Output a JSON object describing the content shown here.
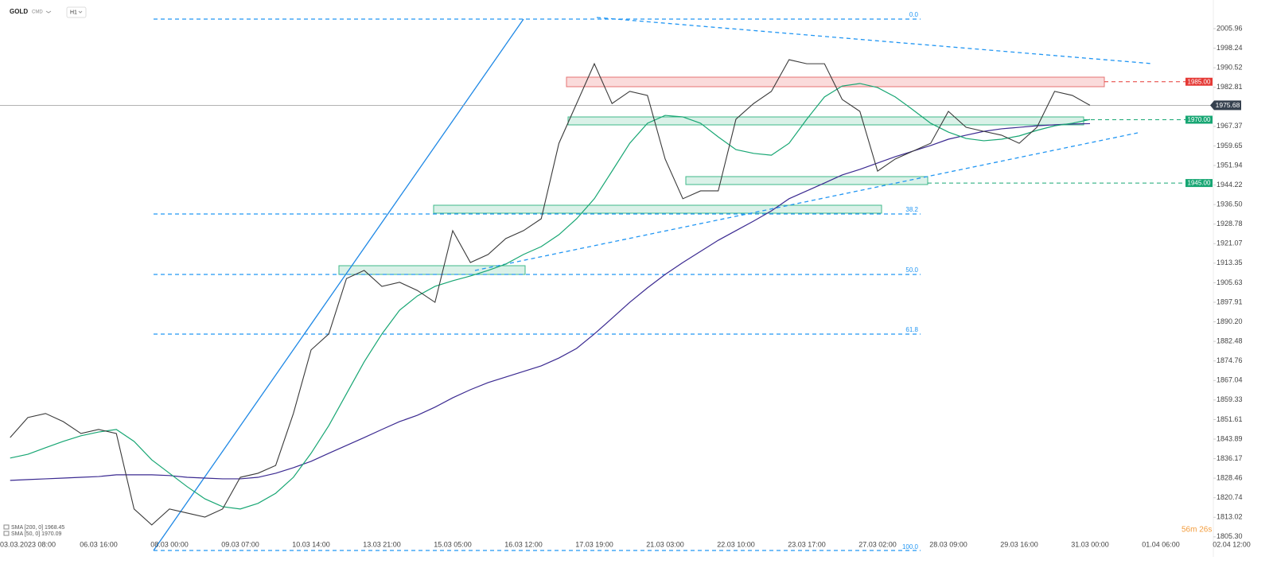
{
  "chart_data": {
    "type": "line",
    "symbol": "GOLD",
    "symbol_class": "CMD",
    "timeframe": "H1",
    "categories": [
      null,
      "03.03.2023 08:00",
      null,
      null,
      null,
      "06.03 16:00",
      null,
      null,
      null,
      "08.03 00:00",
      null,
      null,
      null,
      "09.03 07:00",
      null,
      null,
      null,
      "10.03 14:00",
      null,
      null,
      null,
      "13.03 21:00",
      null,
      null,
      null,
      "15.03 05:00",
      null,
      null,
      null,
      "16.03 12:00",
      null,
      null,
      null,
      "17.03 19:00",
      null,
      null,
      null,
      "21.03 03:00",
      null,
      null,
      null,
      "22.03 10:00",
      null,
      null,
      null,
      "23.03 17:00",
      null,
      null,
      null,
      "27.03 02:00",
      null,
      null,
      null,
      "28.03 09:00",
      null,
      null,
      null,
      "29.03 16:00",
      null,
      null,
      null,
      "31.03 00:00",
      null,
      null,
      null,
      "01.04 06:00",
      null,
      null,
      null,
      "02.04 12:00"
    ],
    "price": {
      "color": "#3a3a3a",
      "values": [
        1844.5,
        1852.4,
        1854.0,
        1850.8,
        1846.1,
        1847.7,
        1846.1,
        1816.3,
        1810.0,
        1816.3,
        1814.7,
        1813.1,
        1816.3,
        1828.8,
        1830.4,
        1833.5,
        1854.0,
        1879.1,
        1885.4,
        1907.3,
        1910.5,
        1904.2,
        1905.8,
        1902.6,
        1897.9,
        1926.2,
        1913.6,
        1916.8,
        1923.1,
        1926.2,
        1930.9,
        1960.7,
        1976.4,
        1992.1,
        1976.4,
        1981.2,
        1979.6,
        1954.5,
        1938.8,
        1941.9,
        1941.9,
        1970.2,
        1976.4,
        1981.2,
        1993.7,
        1992.1,
        1992.1,
        1978.0,
        1973.3,
        1949.7,
        1954.5,
        1957.6,
        1960.7,
        1973.3,
        1967.0,
        1965.4,
        1963.9,
        1960.7,
        1967.0,
        1981.2,
        1979.6,
        1975.68,
        null,
        null,
        null,
        null,
        null,
        null,
        null,
        null
      ]
    },
    "series": [
      {
        "name": "SMA [200, 0] 1968.45",
        "color": "#3b2a91",
        "values": [
          1827.6,
          1827.9,
          1828.2,
          1828.5,
          1828.8,
          1829.1,
          1829.8,
          1829.8,
          1829.8,
          1829.5,
          1828.8,
          1828.5,
          1828.2,
          1828.2,
          1828.8,
          1830.4,
          1832.6,
          1835.1,
          1838.3,
          1841.4,
          1844.5,
          1847.7,
          1850.8,
          1853.3,
          1856.5,
          1860.2,
          1863.4,
          1866.2,
          1868.4,
          1870.6,
          1872.8,
          1875.9,
          1879.7,
          1885.4,
          1891.6,
          1897.9,
          1903.6,
          1908.9,
          1913.6,
          1918.0,
          1922.4,
          1926.2,
          1930.0,
          1934.0,
          1938.8,
          1941.9,
          1945.0,
          1948.2,
          1950.4,
          1952.9,
          1955.4,
          1957.6,
          1959.8,
          1962.3,
          1963.9,
          1965.4,
          1966.4,
          1967.0,
          1967.6,
          1968.0,
          1968.3,
          1968.45,
          null,
          null,
          null,
          null,
          null,
          null,
          null,
          null
        ]
      },
      {
        "name": "SMA [50, 0] 1970.09",
        "color": "#17a673",
        "values": [
          1836.4,
          1837.9,
          1840.5,
          1843.0,
          1845.2,
          1846.7,
          1847.7,
          1843.0,
          1835.7,
          1830.4,
          1825.1,
          1820.3,
          1817.2,
          1816.3,
          1818.5,
          1822.5,
          1828.8,
          1838.3,
          1849.2,
          1861.8,
          1874.4,
          1885.4,
          1894.8,
          1900.4,
          1904.2,
          1906.4,
          1908.3,
          1910.5,
          1913.0,
          1916.8,
          1919.9,
          1924.6,
          1930.9,
          1938.8,
          1949.7,
          1960.7,
          1968.6,
          1971.7,
          1971.1,
          1968.6,
          1963.2,
          1958.2,
          1956.7,
          1956.0,
          1960.7,
          1970.2,
          1979.0,
          1983.3,
          1984.3,
          1982.7,
          1979.0,
          1973.9,
          1968.6,
          1965.1,
          1962.6,
          1961.7,
          1962.3,
          1963.6,
          1965.8,
          1967.6,
          1968.6,
          1970.09,
          null,
          null,
          null,
          null,
          null,
          null,
          null,
          null
        ]
      }
    ],
    "ylim": [
      1797.4,
      2017.27
    ],
    "yticks": [
      2005.96,
      1998.24,
      1990.52,
      1982.81,
      1967.37,
      1959.65,
      1951.94,
      1944.22,
      {
        "value": 1936.5,
        "label": "1936.50"
      },
      1928.78,
      1921.07,
      1913.35,
      1905.63,
      1897.91,
      {
        "value": 1890.2,
        "label": "1890.20"
      },
      1882.48,
      1874.76,
      1867.04,
      1859.33,
      1851.61,
      1843.89,
      1836.17,
      1828.46,
      1820.74,
      1813.02,
      {
        "value": 1805.3,
        "label": "1805.30"
      }
    ],
    "levels": [
      {
        "value": 1985,
        "label": "1985.00",
        "color": "#e53935"
      },
      {
        "value": 1970,
        "label": "1970.00",
        "color": "#17a673"
      },
      {
        "value": 1945,
        "label": "1945.00",
        "color": "#17a673"
      }
    ],
    "current_price": {
      "value": 1975.68,
      "label": "1975.68"
    },
    "fib_labels": [
      "0.0",
      "38.2",
      "50.0",
      "61.8",
      "100.0"
    ],
    "countdown": "56m 26s"
  }
}
